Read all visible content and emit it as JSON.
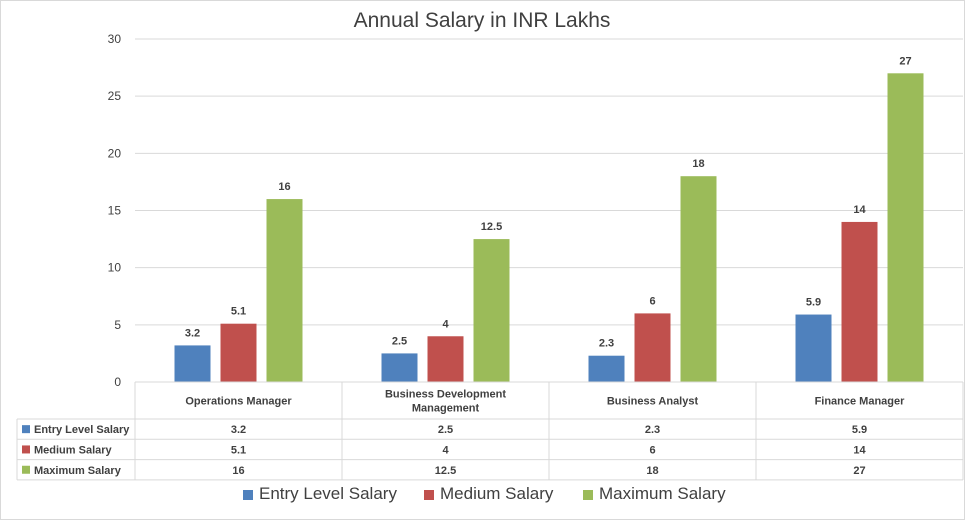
{
  "chart_data": {
    "type": "bar",
    "title": "Annual Salary in INR Lakhs",
    "categories": [
      "Operations Manager",
      "Business Development Management",
      "Business Analyst",
      "Finance Manager"
    ],
    "category_lines": [
      [
        "Operations Manager"
      ],
      [
        "Business Development",
        "Management"
      ],
      [
        "Business Analyst"
      ],
      [
        "Finance Manager"
      ]
    ],
    "series": [
      {
        "name": "Entry Level Salary",
        "color": "#4f81bd",
        "values": [
          3.2,
          2.5,
          2.3,
          5.9
        ],
        "labels": [
          "3.2",
          "2.5",
          "2.3",
          "5.9"
        ]
      },
      {
        "name": "Medium Salary",
        "color": "#c0504d",
        "values": [
          5.1,
          4,
          6,
          14
        ],
        "labels": [
          "5.1",
          "4",
          "6",
          "14"
        ]
      },
      {
        "name": "Maximum Salary",
        "color": "#9bbb59",
        "values": [
          16,
          12.5,
          18,
          27
        ],
        "labels": [
          "16",
          "12.5",
          "18",
          "27"
        ]
      }
    ],
    "ylim": [
      0,
      30
    ],
    "yticks": [
      "0",
      "5",
      "10",
      "15",
      "20",
      "25",
      "30"
    ],
    "xlabel": "",
    "ylabel": "",
    "grid": true,
    "legend": "bottom",
    "data_table": true
  }
}
